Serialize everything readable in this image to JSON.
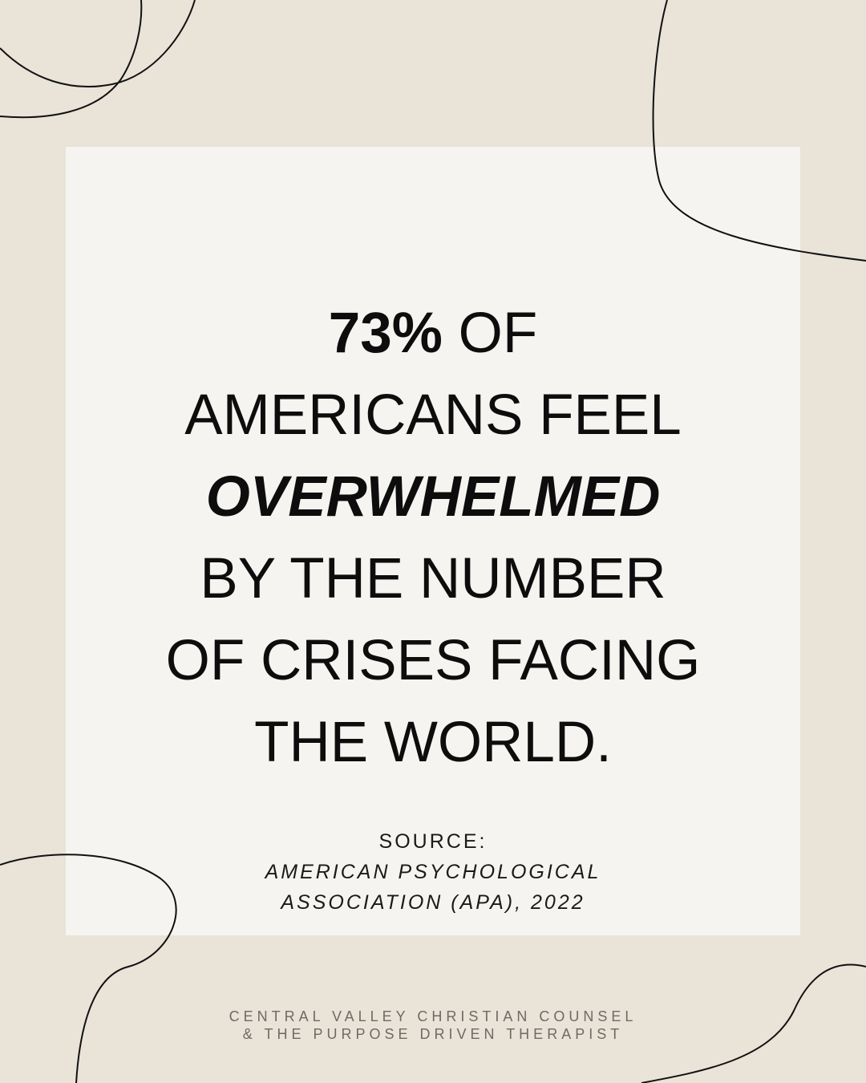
{
  "headline": {
    "stat": "73%",
    "line1_rest": " OF",
    "line2": "AMERICANS FEEL",
    "line3": "OVERWHELMED",
    "line4": "BY THE NUMBER",
    "line5": "OF CRISES FACING",
    "line6": "THE WORLD."
  },
  "source": {
    "label": "SOURCE:",
    "line1": "AMERICAN PSYCHOLOGICAL",
    "line2": "ASSOCIATION (APA), 2022"
  },
  "footer": {
    "line1": "CENTRAL VALLEY CHRISTIAN COUNSEL",
    "line2": "& THE PURPOSE DRIVEN THERAPIST"
  },
  "colors": {
    "background": "#e9e3d8",
    "card": "#f6f4f0",
    "text": "#0d0d0d",
    "footer_text": "#6f6a64"
  }
}
